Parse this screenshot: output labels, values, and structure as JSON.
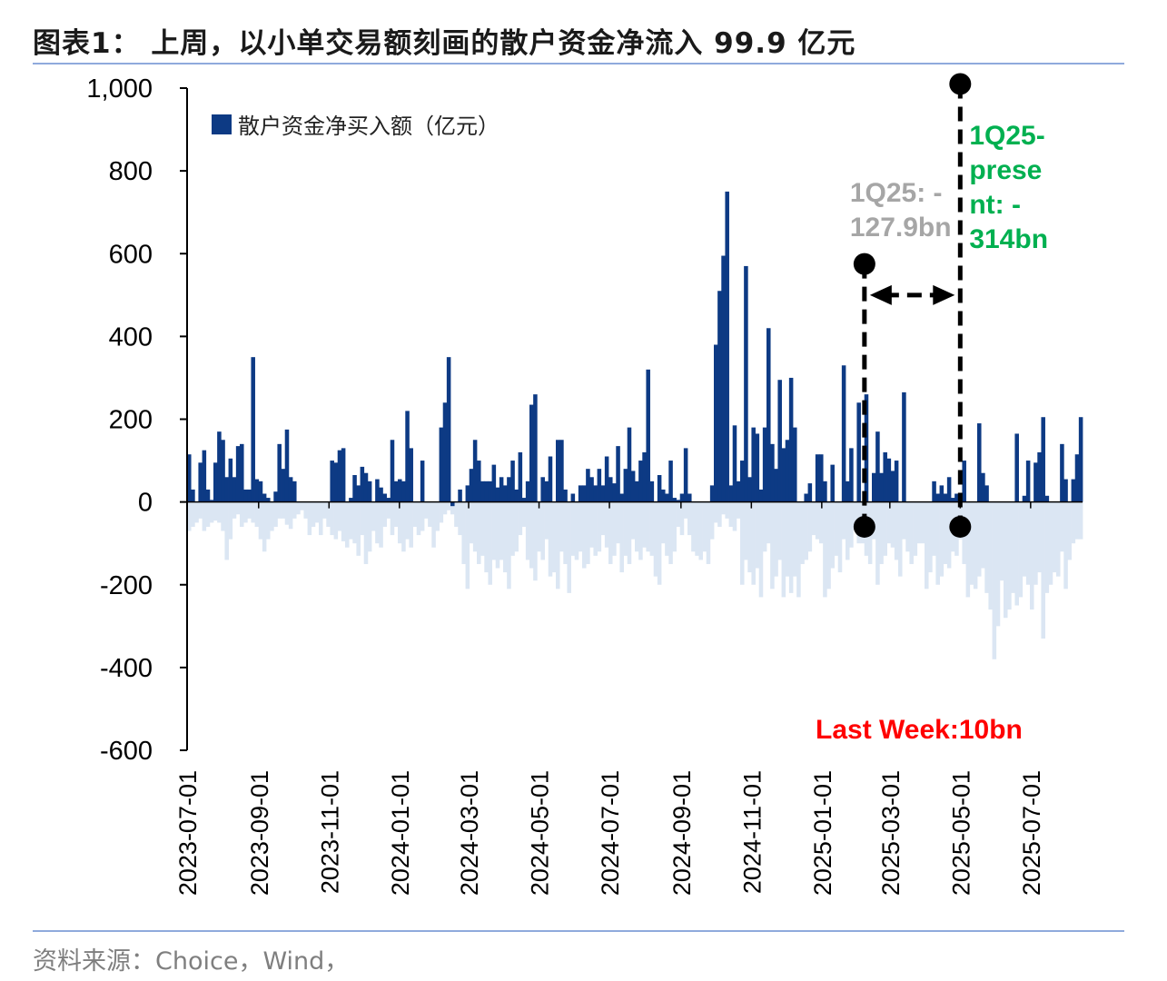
{
  "title": "图表1： 上周，以小单交易额刻画的散户资金净流入 99.9 亿元",
  "source": "资料来源：Choice，Wind，",
  "chart_data": {
    "type": "bar",
    "ylim": [
      -600,
      1000
    ],
    "yticks": [
      -600,
      -400,
      -200,
      0,
      200,
      400,
      600,
      800,
      1000
    ],
    "ytick_labels": [
      "-600",
      "-400",
      "-200",
      "0",
      "200",
      "400",
      "600",
      "800",
      "1,000"
    ],
    "x_range": [
      "2023-07-01",
      "2025-08-15"
    ],
    "xticks": [
      "2023-07-01",
      "2023-09-01",
      "2023-11-01",
      "2024-01-01",
      "2024-03-01",
      "2024-05-01",
      "2024-07-01",
      "2024-09-01",
      "2024-11-01",
      "2025-01-01",
      "2025-03-01",
      "2025-05-01",
      "2025-07-01"
    ],
    "legend": "散户资金净买入额（亿元）",
    "colors": {
      "positive": "#0d3a84",
      "negative": "#dbe6f3",
      "gray_ann": "#a6a6a6",
      "green_ann": "#00b050",
      "red_ann": "#ff0000"
    },
    "series": [
      {
        "name": "散户资金净买入额（亿元）",
        "color": "#0d3a84",
        "values": [
          115,
          30,
          0,
          95,
          125,
          30,
          5,
          95,
          170,
          150,
          60,
          105,
          60,
          135,
          140,
          30,
          30,
          350,
          55,
          50,
          20,
          10,
          0,
          25,
          140,
          80,
          175,
          60,
          50,
          0,
          0,
          0,
          0,
          0,
          0,
          0,
          0,
          0,
          100,
          95,
          125,
          130,
          0,
          10,
          65,
          40,
          85,
          70,
          50,
          0,
          55,
          35,
          20,
          10,
          150,
          50,
          55,
          50,
          220,
          130,
          0,
          0,
          100,
          0,
          0,
          0,
          0,
          180,
          240,
          350,
          -10,
          0,
          30,
          0,
          40,
          80,
          150,
          100,
          50,
          50,
          50,
          90,
          35,
          60,
          40,
          60,
          100,
          30,
          120,
          10,
          50,
          235,
          260,
          0,
          60,
          50,
          110,
          0,
          150,
          150,
          30,
          0,
          20,
          0,
          40,
          40,
          80,
          60,
          40,
          80,
          40,
          110,
          60,
          45,
          135,
          20,
          80,
          180,
          75,
          50,
          100,
          120,
          320,
          50,
          0,
          65,
          30,
          20,
          100,
          10,
          5,
          20,
          130,
          20,
          0,
          0,
          0,
          0,
          0,
          40,
          380,
          510,
          595,
          750,
          40,
          185,
          50,
          100,
          570,
          60,
          180,
          165,
          30,
          180,
          420,
          140,
          80,
          295,
          130,
          150,
          300,
          180,
          0,
          0,
          20,
          45,
          0,
          115,
          115,
          50,
          0,
          90,
          0,
          0,
          330,
          50,
          130,
          0,
          240,
          0,
          260,
          0,
          70,
          170,
          70,
          120,
          105,
          75,
          100,
          0,
          265,
          0,
          0,
          0,
          0,
          0,
          0,
          0,
          50,
          20,
          40,
          20,
          60,
          10,
          20,
          20,
          100,
          0,
          0,
          0,
          190,
          70,
          40,
          0,
          0,
          0,
          0,
          0,
          0,
          0,
          165,
          0,
          15,
          100,
          0,
          95,
          120,
          205,
          15,
          0,
          0,
          0,
          140,
          55,
          0,
          55,
          115,
          205
        ]
      },
      {
        "name": "negative",
        "color": "#dbe6f3",
        "values": [
          -70,
          -60,
          -50,
          -40,
          -70,
          -60,
          -50,
          -45,
          -50,
          -70,
          -140,
          -90,
          -40,
          -30,
          -60,
          -50,
          -40,
          -50,
          -60,
          -90,
          -120,
          -90,
          -70,
          -60,
          -40,
          -40,
          -55,
          -65,
          -40,
          -30,
          -20,
          -40,
          -80,
          -60,
          -50,
          -80,
          -40,
          -60,
          -80,
          -90,
          -70,
          -95,
          -110,
          -90,
          -100,
          -130,
          -80,
          -150,
          -120,
          -70,
          -100,
          -110,
          -60,
          -40,
          -80,
          -60,
          -100,
          -120,
          -90,
          -110,
          -60,
          -80,
          -70,
          -40,
          -60,
          -110,
          -70,
          -50,
          -30,
          -20,
          -30,
          -60,
          -80,
          -150,
          -210,
          -100,
          -120,
          -150,
          -130,
          -170,
          -200,
          -140,
          -160,
          -140,
          -170,
          -210,
          -130,
          -120,
          -80,
          -60,
          -140,
          -160,
          -190,
          -120,
          -140,
          -90,
          -180,
          -170,
          -210,
          -120,
          -150,
          -220,
          -130,
          -140,
          -120,
          -160,
          -150,
          -110,
          -130,
          -120,
          -80,
          -110,
          -150,
          -130,
          -100,
          -170,
          -130,
          -150,
          -90,
          -120,
          -140,
          -110,
          -120,
          -130,
          -180,
          -200,
          -100,
          -130,
          -150,
          -120,
          -60,
          -80,
          -40,
          -80,
          -120,
          -130,
          -140,
          -120,
          -150,
          -90,
          -50,
          -60,
          -30,
          -40,
          -60,
          -70,
          -40,
          -200,
          -140,
          -170,
          -200,
          -160,
          -230,
          -120,
          -100,
          -210,
          -180,
          -140,
          -230,
          -180,
          -220,
          -180,
          -230,
          -150,
          -140,
          -120,
          -80,
          -90,
          -100,
          -230,
          -210,
          -160,
          -130,
          -170,
          -90,
          -140,
          -110,
          -60,
          -100,
          -100,
          -130,
          -150,
          -90,
          -200,
          -150,
          -130,
          -100,
          -110,
          -140,
          -180,
          -90,
          -120,
          -150,
          -130,
          -100,
          -100,
          -210,
          -170,
          -130,
          -200,
          -180,
          -150,
          -160,
          -120,
          -130,
          -90,
          -150,
          -230,
          -200,
          -210,
          -180,
          -160,
          -220,
          -260,
          -380,
          -300,
          -190,
          -280,
          -260,
          -220,
          -250,
          -230,
          -180,
          -200,
          -260,
          -200,
          -170,
          -330,
          -220,
          -200,
          -170,
          -180,
          -120,
          -210,
          -140,
          -100,
          -90,
          -90
        ]
      }
    ],
    "annotations": {
      "gray_text": [
        "1Q25: -",
        "127.9bn"
      ],
      "green_text": [
        "1Q25-",
        "prese",
        "nt: -",
        "314bn"
      ],
      "red_text": "Last Week:10bn",
      "marker_1q25_date": "2025-02-07",
      "marker_present_date": "2025-05-01",
      "marker_1q25_top": 575,
      "marker_present_top": 1010,
      "marker_bottom": -60,
      "arrow_level": 500
    }
  }
}
